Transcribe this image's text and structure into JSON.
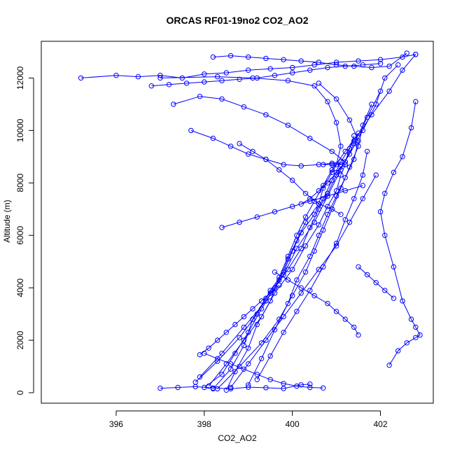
{
  "chart_data": {
    "type": "scatter",
    "mode": "lines+markers",
    "title": "ORCAS RF01-19no2 CO2_AO2",
    "xlabel": "CO2_AO2",
    "ylabel": "Altitude (m)",
    "xlim": [
      394.3,
      403.2
    ],
    "ylim": [
      -400,
      13400
    ],
    "x_ticks": [
      396,
      398,
      400,
      402
    ],
    "x_tick_labels": [
      "396",
      "398",
      "400",
      "402"
    ],
    "y_ticks": [
      0,
      2000,
      4000,
      6000,
      8000,
      10000,
      12000
    ],
    "y_tick_labels": [
      "0",
      "2000",
      "4000",
      "6000",
      "8000",
      "10000",
      "12000"
    ],
    "grid": false,
    "legend": "none",
    "marker": "open-circle",
    "color": "#0000ff",
    "series": [
      {
        "x": [
          398.2,
          398.6,
          398.9,
          399.1,
          399.4,
          399.7,
          399.9,
          400.1,
          400.3,
          400.6,
          400.7,
          400.9,
          401.0,
          401.1,
          401.0,
          400.8,
          400.5,
          399.9,
          399.1,
          398.3,
          397.0
        ],
        "y": [
          150,
          900,
          1800,
          2800,
          3600,
          4300,
          5100,
          5800,
          6500,
          7200,
          7800,
          8400,
          8700,
          9400,
          10300,
          11100,
          11700,
          11900,
          12000,
          12050,
          12000
        ]
      },
      {
        "x": [
          398.0,
          398.4,
          398.7,
          399.0,
          399.3,
          399.6,
          399.9,
          400.2,
          400.4,
          400.6,
          400.8,
          401.0,
          401.3,
          401.6,
          401.9,
          402.1,
          402.4
        ],
        "y": [
          200,
          700,
          1500,
          2300,
          3200,
          4000,
          4700,
          5500,
          6300,
          7000,
          7600,
          8300,
          9100,
          10000,
          11000,
          12000,
          12500
        ]
      },
      {
        "x": [
          397.8,
          398.3,
          398.8,
          399.2,
          399.5,
          399.8,
          400.0,
          400.2,
          400.5,
          400.7,
          400.9,
          401.1,
          401.4,
          401.8,
          402.2,
          402.5,
          402.8
        ],
        "y": [
          400,
          1200,
          2100,
          3000,
          3900,
          4600,
          5400,
          6100,
          6800,
          7400,
          8100,
          8800,
          9600,
          10600,
          11500,
          12300,
          12900
        ]
      },
      {
        "x": [
          399.0,
          399.3,
          399.6,
          399.9,
          400.1,
          400.4,
          400.6,
          400.8,
          401.0,
          401.2,
          401.4,
          401.5,
          401.3,
          401.0,
          400.6
        ],
        "y": [
          300,
          1300,
          2400,
          3400,
          4300,
          5200,
          6000,
          6800,
          7500,
          8200,
          8900,
          9600,
          10400,
          11200,
          11800
        ]
      },
      {
        "x": [
          398.5,
          398.7,
          399.0,
          399.2,
          399.5,
          399.7,
          399.9,
          400.1,
          400.3,
          400.5,
          400.7,
          400.9,
          401.2,
          401.5
        ],
        "y": [
          100,
          800,
          1700,
          2600,
          3500,
          4400,
          5200,
          6000,
          6700,
          7300,
          7900,
          8500,
          9200,
          9900
        ]
      },
      {
        "x": [
          398.1,
          398.5,
          398.9,
          399.3,
          399.6,
          400.0,
          400.3,
          400.6,
          400.8,
          401.0,
          401.1,
          401.2
        ],
        "y": [
          250,
          1100,
          2000,
          2900,
          3800,
          4700,
          5600,
          6400,
          7100,
          7700,
          8300,
          8700
        ]
      },
      {
        "x": [
          397.9,
          398.4,
          398.9,
          399.4,
          399.8,
          400.1,
          400.5,
          400.8,
          401.1,
          401.4,
          401.7,
          402.0
        ],
        "y": [
          600,
          1500,
          2500,
          3500,
          4500,
          5500,
          6500,
          7500,
          8500,
          9500,
          10500,
          11500
        ]
      },
      {
        "x": [
          399.2,
          399.5,
          399.8,
          400.1,
          400.4,
          400.7,
          401.0,
          401.2,
          401.4,
          401.6,
          401.7
        ],
        "y": [
          500,
          1400,
          2300,
          3100,
          3900,
          4800,
          5700,
          6600,
          7400,
          8300,
          9200
        ]
      },
      {
        "x": [
          398.3,
          398.8,
          399.3,
          399.7,
          400.0,
          400.3,
          400.5,
          400.7,
          400.9,
          401.1,
          401.3,
          401.5,
          401.6,
          401.8
        ],
        "y": [
          150,
          1000,
          1900,
          2800,
          3700,
          4600,
          5400,
          6200,
          7000,
          7800,
          8600,
          9400,
          10200,
          11000
        ]
      },
      {
        "x": [
          398.6,
          399.0,
          399.4,
          399.8,
          400.2,
          400.6,
          401.0,
          401.3,
          401.6,
          401.9
        ],
        "y": [
          200,
          1100,
          2000,
          2900,
          3800,
          4700,
          5600,
          6500,
          7400,
          8300
        ]
      },
      {
        "x": [
          402.2,
          402.4,
          402.6,
          402.8,
          402.9,
          402.8,
          402.7,
          402.5,
          402.3,
          402.1,
          402.0,
          402.1,
          402.3,
          402.5,
          402.7,
          402.8
        ],
        "y": [
          1050,
          1600,
          1900,
          2100,
          2200,
          2500,
          2800,
          3500,
          4800,
          6000,
          6900,
          7600,
          8400,
          9000,
          10100,
          11100
        ]
      },
      {
        "x": [
          395.2,
          396.0,
          396.5,
          397.0,
          397.5,
          398.0,
          398.5,
          399.0,
          399.5,
          400.0,
          400.5,
          401.0,
          401.5,
          402.0,
          402.5,
          402.8
        ],
        "y": [
          12000,
          12100,
          12050,
          12100,
          12000,
          12150,
          12200,
          12300,
          12350,
          12400,
          12500,
          12600,
          12650,
          12700,
          12800,
          12900
        ]
      },
      {
        "x": [
          396.8,
          397.2,
          397.6,
          398.0,
          398.4,
          398.8,
          399.2,
          399.6,
          400.0,
          400.4,
          400.8,
          401.2,
          401.6,
          402.0
        ],
        "y": [
          11700,
          11750,
          11800,
          11850,
          11900,
          11950,
          12000,
          12100,
          12200,
          12300,
          12400,
          12450,
          12500,
          12550
        ]
      },
      {
        "x": [
          398.2,
          398.6,
          399.0,
          399.4,
          399.8,
          400.2,
          400.6,
          401.0,
          401.4,
          401.8,
          402.2,
          402.6
        ],
        "y": [
          12800,
          12850,
          12800,
          12750,
          12700,
          12650,
          12600,
          12500,
          12450,
          12400,
          12450,
          12950
        ]
      },
      {
        "x": [
          397.3,
          397.9,
          398.4,
          398.9,
          399.4,
          399.9,
          400.4,
          400.9,
          401.2,
          401.1,
          400.9,
          400.7
        ],
        "y": [
          11000,
          11300,
          11200,
          10900,
          10600,
          10200,
          9700,
          9200,
          8800,
          8700,
          8700,
          8700
        ]
      },
      {
        "x": [
          397.7,
          398.2,
          398.6,
          399.0,
          399.4,
          399.8,
          400.2,
          400.6,
          400.9,
          401.2
        ],
        "y": [
          10000,
          9700,
          9400,
          9100,
          8900,
          8700,
          8650,
          8700,
          8750,
          8700
        ]
      },
      {
        "x": [
          398.8,
          399.1,
          399.4,
          399.7,
          400.0,
          400.3,
          400.6,
          400.9,
          401.1
        ],
        "y": [
          9500,
          9200,
          8900,
          8500,
          8100,
          7600,
          7200,
          7000,
          6800
        ]
      },
      {
        "x": [
          398.0,
          398.3,
          398.6,
          398.9,
          399.2,
          399.5,
          399.8,
          400.1,
          400.4,
          400.7
        ],
        "y": [
          1500,
          1300,
          1100,
          900,
          700,
          500,
          350,
          250,
          200,
          180
        ]
      },
      {
        "x": [
          397.0,
          397.4,
          397.8,
          398.2,
          398.6,
          399.0,
          399.4,
          399.8,
          400.2,
          400.4
        ],
        "y": [
          170,
          200,
          230,
          180,
          150,
          210,
          190,
          160,
          300,
          330
        ]
      },
      {
        "x": [
          397.9,
          398.1,
          398.3,
          398.5,
          398.7,
          398.9,
          399.1,
          399.3,
          399.5,
          399.7
        ],
        "y": [
          1450,
          1700,
          2000,
          2300,
          2600,
          2900,
          3200,
          3500,
          3800,
          4100
        ]
      },
      {
        "x": [
          400.2,
          400.4,
          400.6,
          400.8,
          401.0,
          401.2,
          401.3,
          401.4
        ],
        "y": [
          7200,
          7400,
          7700,
          8000,
          8400,
          8800,
          9300,
          9800
        ]
      },
      {
        "x": [
          399.6,
          399.9,
          400.2,
          400.5,
          400.8,
          401.0,
          401.2,
          401.4,
          401.5
        ],
        "y": [
          4600,
          4300,
          4000,
          3700,
          3400,
          3100,
          2800,
          2500,
          2200
        ]
      },
      {
        "x": [
          401.5,
          401.7,
          401.9,
          402.1,
          402.3
        ],
        "y": [
          4800,
          4500,
          4200,
          3900,
          3600
        ]
      },
      {
        "x": [
          398.4,
          398.8,
          399.2,
          399.6,
          400.0,
          400.4,
          400.8,
          401.2,
          401.6
        ],
        "y": [
          6300,
          6500,
          6700,
          6900,
          7100,
          7300,
          7500,
          7700,
          7900
        ]
      }
    ]
  }
}
